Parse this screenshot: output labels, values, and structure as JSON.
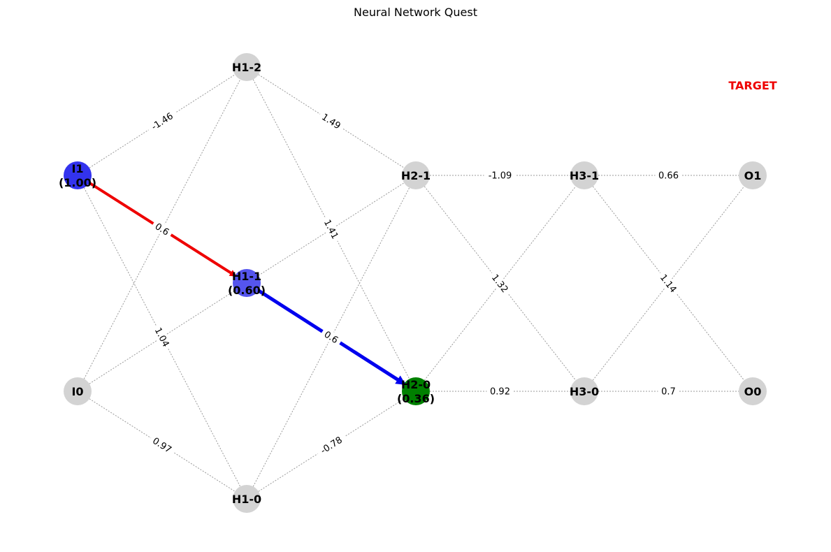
{
  "title": "Neural Network Quest",
  "target_label": "TARGET",
  "colors": {
    "node_default": "#d3d3d3",
    "node_input_active": "#3333ee",
    "node_hidden_active": "#5555ee",
    "node_current": "#008000",
    "path_first": "#ee0000",
    "path_second": "#0000ee",
    "target": "#ee0000",
    "edge": "#999999"
  },
  "nodes": [
    {
      "id": "I1",
      "label": "I1",
      "value": "(1.00)",
      "state": "input_active"
    },
    {
      "id": "I0",
      "label": "I0",
      "value": "",
      "state": "default"
    },
    {
      "id": "H1-2",
      "label": "H1-2",
      "value": "",
      "state": "default"
    },
    {
      "id": "H1-1",
      "label": "H1-1",
      "value": "(0.60)",
      "state": "hidden_active"
    },
    {
      "id": "H1-0",
      "label": "H1-0",
      "value": "",
      "state": "default"
    },
    {
      "id": "H2-1",
      "label": "H2-1",
      "value": "",
      "state": "default"
    },
    {
      "id": "H2-0",
      "label": "H2-0",
      "value": "(0.36)",
      "state": "current"
    },
    {
      "id": "H3-1",
      "label": "H3-1",
      "value": "",
      "state": "default"
    },
    {
      "id": "H3-0",
      "label": "H3-0",
      "value": "",
      "state": "default"
    },
    {
      "id": "O1",
      "label": "O1",
      "value": "",
      "state": "default"
    },
    {
      "id": "O0",
      "label": "O0",
      "value": "",
      "state": "default"
    }
  ],
  "edges": [
    {
      "from": "I1",
      "to": "H1-2",
      "weight": "-1.46"
    },
    {
      "from": "I1",
      "to": "H1-1",
      "weight": "0.6"
    },
    {
      "from": "I1",
      "to": "H1-0",
      "weight": "1.04"
    },
    {
      "from": "I0",
      "to": "H1-2",
      "weight": ""
    },
    {
      "from": "I0",
      "to": "H1-1",
      "weight": ""
    },
    {
      "from": "I0",
      "to": "H1-0",
      "weight": "0.97"
    },
    {
      "from": "H1-2",
      "to": "H2-1",
      "weight": "1.49"
    },
    {
      "from": "H1-2",
      "to": "H2-0",
      "weight": "1.41"
    },
    {
      "from": "H1-1",
      "to": "H2-1",
      "weight": ""
    },
    {
      "from": "H1-1",
      "to": "H2-0",
      "weight": "0.6"
    },
    {
      "from": "H1-0",
      "to": "H2-1",
      "weight": ""
    },
    {
      "from": "H1-0",
      "to": "H2-0",
      "weight": "-0.78"
    },
    {
      "from": "H2-1",
      "to": "H3-1",
      "weight": "-1.09"
    },
    {
      "from": "H2-1",
      "to": "H3-0",
      "weight": "1.32"
    },
    {
      "from": "H2-0",
      "to": "H3-1",
      "weight": ""
    },
    {
      "from": "H2-0",
      "to": "H3-0",
      "weight": "0.92"
    },
    {
      "from": "H3-1",
      "to": "O1",
      "weight": "0.66"
    },
    {
      "from": "H3-1",
      "to": "O0",
      "weight": "1.14"
    },
    {
      "from": "H3-0",
      "to": "O1",
      "weight": ""
    },
    {
      "from": "H3-0",
      "to": "O0",
      "weight": "0.7"
    }
  ],
  "path": [
    {
      "from": "I1",
      "to": "H1-1",
      "color_key": "path_first"
    },
    {
      "from": "H1-1",
      "to": "H2-0",
      "color_key": "path_second"
    }
  ]
}
